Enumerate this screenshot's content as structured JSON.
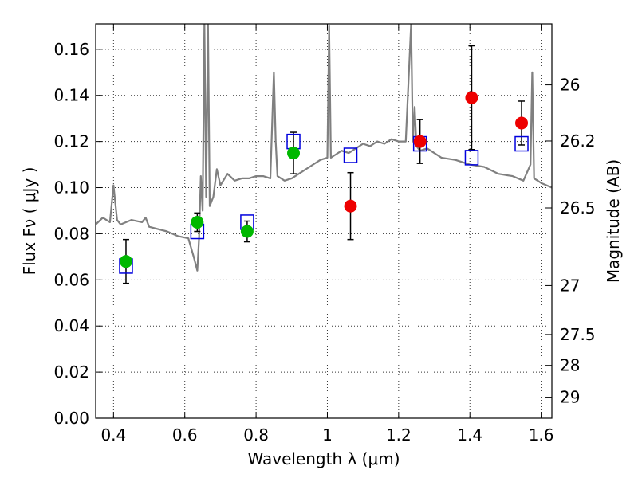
{
  "chart_data": {
    "type": "scatter",
    "title": "",
    "xlabel": "Wavelength  λ (μm)",
    "ylabel": "Flux  Fν  ( μJy )",
    "y2label": "Magnitude (AB)",
    "xlim": [
      0.35,
      1.63
    ],
    "ylim": [
      0.0,
      0.171
    ],
    "grid": true,
    "x_ticks": [
      0.4,
      0.6,
      0.8,
      1.0,
      1.2,
      1.4,
      1.6
    ],
    "x_tick_labels": [
      "0.4",
      "0.6",
      "0.8",
      "1",
      "1.2",
      "1.4",
      "1.6"
    ],
    "y_ticks": [
      0.0,
      0.02,
      0.04,
      0.06,
      0.08,
      0.1,
      0.12,
      0.14,
      0.16
    ],
    "y_tick_labels": [
      "0.00",
      "0.02",
      "0.04",
      "0.06",
      "0.08",
      "0.10",
      "0.12",
      "0.14",
      "0.16"
    ],
    "y2_ticks": [
      {
        "mag": 26,
        "label": "26"
      },
      {
        "mag": 26.2,
        "label": "26.2"
      },
      {
        "mag": 26.5,
        "label": "26.5"
      },
      {
        "mag": 27,
        "label": "27"
      },
      {
        "mag": 27.5,
        "label": "27.5"
      },
      {
        "mag": 28,
        "label": "28"
      },
      {
        "mag": 29,
        "label": "29"
      }
    ],
    "colors": {
      "spectrum": "#808080",
      "green_points": "#00b800",
      "red_points": "#ee0000",
      "model_squares": "#0000dd",
      "error_bars": "#000000"
    },
    "series": [
      {
        "marker": "circle-green",
        "x": [
          0.435,
          0.635,
          0.775,
          0.905
        ],
        "y": [
          0.068,
          0.085,
          0.081,
          0.115
        ],
        "yerr": [
          0.0095,
          0.004,
          0.0045,
          0.009
        ]
      },
      {
        "marker": "circle-red",
        "x": [
          1.065,
          1.26,
          1.405,
          1.545
        ],
        "y": [
          0.092,
          0.12,
          0.139,
          0.128
        ],
        "yerr": [
          0.0145,
          0.0095,
          0.0225,
          0.0095
        ]
      },
      {
        "marker": "open-square-blue",
        "x": [
          0.435,
          0.635,
          0.775,
          0.905,
          1.065,
          1.26,
          1.405,
          1.545
        ],
        "y": [
          0.066,
          0.081,
          0.085,
          0.12,
          0.114,
          0.119,
          0.113,
          0.119
        ]
      },
      {
        "marker": "line-grey",
        "x": [
          0.35,
          0.37,
          0.39,
          0.4,
          0.41,
          0.42,
          0.45,
          0.48,
          0.49,
          0.5,
          0.55,
          0.58,
          0.61,
          0.625,
          0.635,
          0.64,
          0.645,
          0.65,
          0.655,
          0.66,
          0.665,
          0.67,
          0.675,
          0.68,
          0.69,
          0.7,
          0.72,
          0.74,
          0.76,
          0.78,
          0.8,
          0.82,
          0.84,
          0.85,
          0.855,
          0.86,
          0.87,
          0.88,
          0.9,
          0.95,
          0.98,
          1.0,
          1.005,
          1.01,
          1.02,
          1.04,
          1.06,
          1.08,
          1.1,
          1.12,
          1.14,
          1.16,
          1.18,
          1.2,
          1.22,
          1.235,
          1.24,
          1.245,
          1.25,
          1.26,
          1.28,
          1.3,
          1.32,
          1.36,
          1.4,
          1.44,
          1.48,
          1.52,
          1.55,
          1.57,
          1.575,
          1.58,
          1.6,
          1.63
        ],
        "y": [
          0.084,
          0.087,
          0.085,
          0.101,
          0.086,
          0.084,
          0.086,
          0.085,
          0.087,
          0.083,
          0.081,
          0.079,
          0.078,
          0.07,
          0.064,
          0.078,
          0.105,
          0.09,
          0.171,
          0.096,
          0.171,
          0.092,
          0.094,
          0.096,
          0.108,
          0.101,
          0.106,
          0.103,
          0.104,
          0.104,
          0.105,
          0.105,
          0.104,
          0.15,
          0.12,
          0.105,
          0.104,
          0.103,
          0.104,
          0.109,
          0.112,
          0.113,
          0.17,
          0.113,
          0.114,
          0.116,
          0.115,
          0.117,
          0.119,
          0.118,
          0.12,
          0.119,
          0.121,
          0.12,
          0.12,
          0.171,
          0.12,
          0.135,
          0.118,
          0.116,
          0.117,
          0.115,
          0.113,
          0.112,
          0.11,
          0.109,
          0.106,
          0.105,
          0.103,
          0.11,
          0.15,
          0.104,
          0.102,
          0.1
        ]
      }
    ]
  }
}
